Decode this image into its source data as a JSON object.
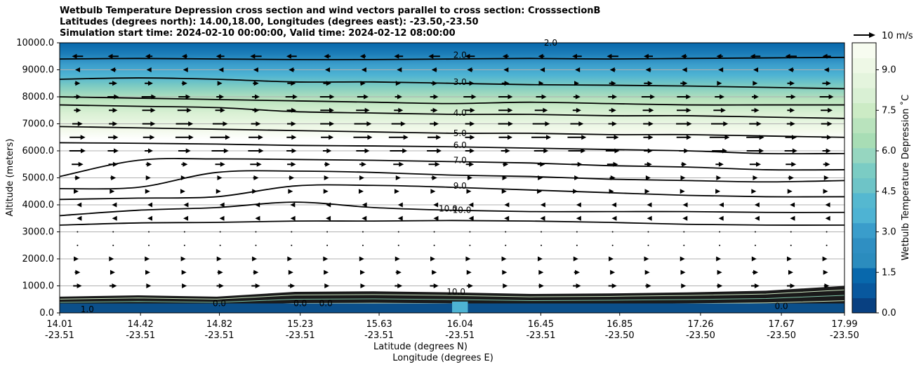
{
  "chart_data": {
    "type": "contour",
    "title_lines": [
      "Wetbulb Temperature Depression cross section and wind vectors parallel to cross section: CrosssectionB",
      "Latitudes (degrees north): 14.00,18.00, Longitudes (degrees east): -23.50,-23.50",
      "Simulation start time: 2024-02-10 00:00:00, Valid time: 2024-02-12 08:00:00"
    ],
    "ylabel": "Altitude (meters)",
    "xlabel": "Latitude (degrees N)",
    "xlabel2": "Longitude (degrees E)",
    "ylim": [
      0,
      10000
    ],
    "xlim": [
      14.01,
      17.99
    ],
    "yticks": [
      "0.0",
      "1000.0",
      "2000.0",
      "3000.0",
      "4000.0",
      "5000.0",
      "6000.0",
      "7000.0",
      "8000.0",
      "9000.0",
      "10000.0"
    ],
    "ytick_values": [
      0,
      1000,
      2000,
      3000,
      4000,
      5000,
      6000,
      7000,
      8000,
      9000,
      10000
    ],
    "xticks_lat": [
      "14.01",
      "14.42",
      "14.82",
      "15.23",
      "15.63",
      "16.04",
      "16.45",
      "16.85",
      "17.26",
      "17.67",
      "17.99"
    ],
    "xticks_lon": [
      "-23.51",
      "-23.51",
      "-23.51",
      "-23.51",
      "-23.51",
      "-23.51",
      "-23.51",
      "-23.50",
      "-23.50",
      "-23.50",
      "-23.50"
    ],
    "xtick_values": [
      14.01,
      14.42,
      14.82,
      15.23,
      15.63,
      16.04,
      16.45,
      16.85,
      17.26,
      17.67,
      17.99
    ],
    "colorbar": {
      "label": "Wetbulb Temperature Depression ˚C",
      "ticks": [
        "0.0",
        "1.5",
        "3.0",
        "4.5",
        "6.0",
        "7.5",
        "9.0"
      ],
      "tick_values": [
        0,
        1.5,
        3,
        4.5,
        6,
        7.5,
        9
      ],
      "range": [
        0,
        10
      ]
    },
    "quiver_key": "10 m/s",
    "contour_labels": [
      {
        "text": "2.0",
        "x": 16.04,
        "y": 9500
      },
      {
        "text": "3.0",
        "x": 16.04,
        "y": 8500
      },
      {
        "text": "4.0",
        "x": 16.04,
        "y": 7350
      },
      {
        "text": "5.0",
        "x": 16.04,
        "y": 6600
      },
      {
        "text": "6.0",
        "x": 16.04,
        "y": 6150
      },
      {
        "text": "7.0",
        "x": 16.04,
        "y": 5600
      },
      {
        "text": "9.0",
        "x": 16.04,
        "y": 4650
      },
      {
        "text": "10.0",
        "x": 15.98,
        "y": 3800
      },
      {
        "text": "10.0",
        "x": 16.05,
        "y": 3750
      },
      {
        "text": "2.0",
        "x": 16.5,
        "y": 9950
      },
      {
        "text": "10.0",
        "x": 16.02,
        "y": 730
      },
      {
        "text": "0.0",
        "x": 15.23,
        "y": 300
      },
      {
        "text": "0.0",
        "x": 15.36,
        "y": 300
      },
      {
        "text": "0.0",
        "x": 17.67,
        "y": 200
      },
      {
        "text": "0.0",
        "x": 14.82,
        "y": 300
      },
      {
        "text": "1.0",
        "x": 14.15,
        "y": 80
      }
    ],
    "isolines": [
      {
        "level": 2,
        "y": [
          9400,
          9420,
          9400,
          9380,
          9380,
          9400,
          9420,
          9400,
          9420,
          9440,
          9460
        ]
      },
      {
        "level": 3,
        "y": [
          8650,
          8700,
          8650,
          8550,
          8550,
          8500,
          8450,
          8430,
          8400,
          8350,
          8300
        ]
      },
      {
        "level": 3.5,
        "y": [
          8000,
          7950,
          7900,
          7850,
          7800,
          7750,
          7800,
          7750,
          7700,
          7700,
          7700
        ]
      },
      {
        "level": 4,
        "y": [
          7700,
          7650,
          7600,
          7450,
          7400,
          7350,
          7350,
          7300,
          7300,
          7250,
          7200
        ]
      },
      {
        "level": 5,
        "y": [
          6900,
          6850,
          6800,
          6750,
          6700,
          6650,
          6650,
          6600,
          6600,
          6550,
          6500
        ]
      },
      {
        "level": 6,
        "y": [
          6300,
          6280,
          6250,
          6200,
          6180,
          6150,
          6100,
          6050,
          6000,
          5900,
          5900
        ]
      },
      {
        "level": 7,
        "y": [
          5050,
          5650,
          5700,
          5680,
          5650,
          5600,
          5550,
          5450,
          5400,
          5300,
          5300
        ]
      },
      {
        "level": 8,
        "y": [
          4600,
          4650,
          5200,
          5250,
          5200,
          5100,
          5050,
          4950,
          4900,
          4850,
          4900
        ]
      },
      {
        "level": 9,
        "y": [
          4200,
          4250,
          4300,
          4700,
          4720,
          4650,
          4550,
          4450,
          4350,
          4300,
          4300
        ]
      },
      {
        "level": 9.5,
        "y": [
          3600,
          3800,
          3900,
          4100,
          3900,
          3800,
          3750,
          3750,
          3750,
          3720,
          3720
        ]
      },
      {
        "level": 10,
        "y": [
          3250,
          3330,
          3350,
          3400,
          3400,
          3420,
          3400,
          3350,
          3280,
          3250,
          3250
        ]
      }
    ],
    "wind_u_profile": [
      {
        "alt": 9500,
        "u": -4
      },
      {
        "alt": 9000,
        "u": -2
      },
      {
        "alt": 8500,
        "u": 3
      },
      {
        "alt": 8000,
        "u": 5
      },
      {
        "alt": 7500,
        "u": 5
      },
      {
        "alt": 7000,
        "u": 6
      },
      {
        "alt": 6500,
        "u": 7
      },
      {
        "alt": 6000,
        "u": 6
      },
      {
        "alt": 5500,
        "u": 4
      },
      {
        "alt": 5000,
        "u": 2
      },
      {
        "alt": 4500,
        "u": 1
      },
      {
        "alt": 4000,
        "u": -1
      },
      {
        "alt": 3500,
        "u": -1
      },
      {
        "alt": 3000,
        "u": 0
      },
      {
        "alt": 2500,
        "u": 0
      },
      {
        "alt": 2000,
        "u": 1
      },
      {
        "alt": 1500,
        "u": 2
      },
      {
        "alt": 1000,
        "u": 3
      }
    ]
  }
}
